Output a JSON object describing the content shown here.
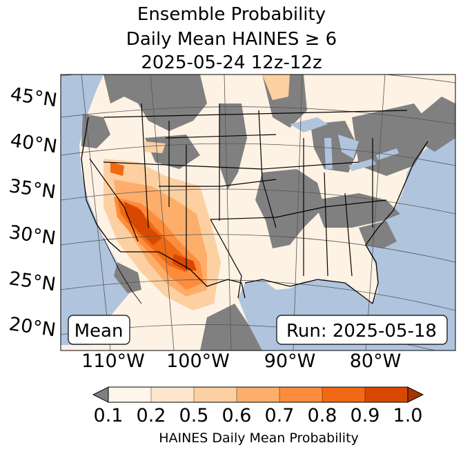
{
  "title": {
    "line1": "Ensemble Probability",
    "line2": "Daily Mean HAINES ≥ 6",
    "line3": "2025-05-24 12z-12z"
  },
  "map": {
    "lat_labels": [
      "45°N",
      "40°N",
      "35°N",
      "30°N",
      "25°N",
      "20°N"
    ],
    "lon_labels": [
      "110°W",
      "100°W",
      "90°W",
      "80°W"
    ],
    "stat_label": "Mean",
    "run_label": "Run: 2025-05-18",
    "colors": {
      "ocean": "#b0c4de",
      "missing": "#808080",
      "land_low": "#fef2e4"
    }
  },
  "colorbar": {
    "ticks": [
      "0.1",
      "0.2",
      "0.5",
      "0.6",
      "0.7",
      "0.8",
      "0.9",
      "1.0"
    ],
    "colors": [
      "#fff5eb",
      "#fee6ce",
      "#fdd0a2",
      "#fdae6b",
      "#fd8d3c",
      "#f16913",
      "#d94801"
    ],
    "under_color": "#808080",
    "over_color": "#a63603",
    "label": "HAINES Daily Mean Probability"
  }
}
